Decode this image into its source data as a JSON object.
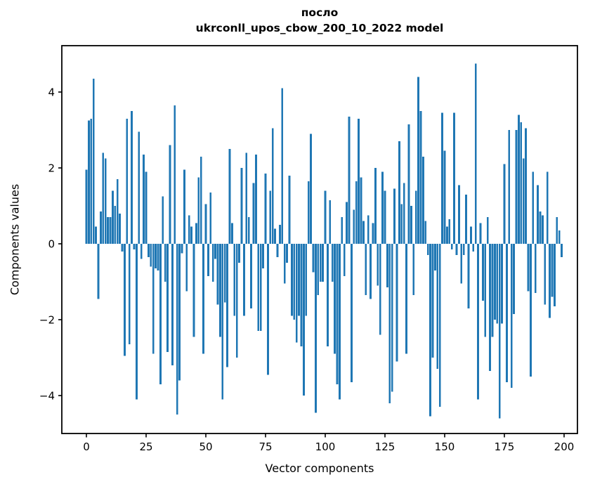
{
  "figure": {
    "title_line1": "посло",
    "title_line2": "ukrconll_upos_cbow_200_10_2022 model",
    "xlabel": "Vector components",
    "ylabel": "Components values",
    "bar_color": "#1f77b4",
    "axis_color": "#000000",
    "background_color": "#ffffff"
  },
  "chart_data": {
    "type": "bar",
    "title": "посло\nukrconll_upos_cbow_200_10_2022 model",
    "xlabel": "Vector components",
    "ylabel": "Components values",
    "legend": null,
    "grid": false,
    "x_ticks": [
      0,
      25,
      50,
      75,
      100,
      125,
      150,
      175,
      200
    ],
    "y_ticks": [
      -4,
      -2,
      0,
      2,
      4
    ],
    "xlim": [
      -10.3,
      205.6
    ],
    "ylim": [
      -5.07,
      5.22
    ],
    "bar_width_fraction": 0.8,
    "x_start_index": 0,
    "values": [
      1.95,
      3.25,
      3.3,
      4.35,
      0.45,
      -1.45,
      0.85,
      2.4,
      2.25,
      0.7,
      0.7,
      1.4,
      1.0,
      1.7,
      0.8,
      -0.2,
      -2.95,
      3.3,
      -2.65,
      3.5,
      -0.15,
      -4.1,
      2.95,
      -0.4,
      2.35,
      1.9,
      -0.35,
      -0.6,
      -2.9,
      -0.65,
      -0.7,
      -3.7,
      1.25,
      -1.0,
      -2.85,
      2.6,
      -3.2,
      3.65,
      -4.5,
      -3.6,
      -0.25,
      1.95,
      -1.25,
      0.75,
      0.45,
      -2.45,
      0.55,
      1.75,
      2.3,
      -2.9,
      1.05,
      -0.85,
      1.35,
      -1.0,
      -0.4,
      -1.6,
      -2.45,
      -4.1,
      -1.55,
      -3.25,
      2.5,
      0.55,
      -1.9,
      -3.0,
      -0.5,
      2.0,
      -1.9,
      2.4,
      0.7,
      -1.7,
      1.6,
      2.35,
      -2.3,
      -2.3,
      -0.65,
      1.85,
      -3.45,
      1.4,
      3.05,
      0.4,
      -0.35,
      0.5,
      4.1,
      -1.05,
      -0.5,
      1.8,
      -1.9,
      -2.0,
      -2.6,
      -1.9,
      -2.7,
      -4.0,
      -1.9,
      1.65,
      2.9,
      -0.75,
      -4.45,
      -1.35,
      -1.0,
      -1.0,
      1.4,
      -2.7,
      1.15,
      -1.0,
      -2.9,
      -3.7,
      -4.1,
      0.7,
      -0.85,
      1.1,
      3.35,
      -3.65,
      0.9,
      1.65,
      3.3,
      1.75,
      0.6,
      -1.35,
      0.75,
      -1.45,
      0.55,
      2.0,
      -1.1,
      -2.4,
      1.9,
      1.4,
      -1.15,
      -4.2,
      -3.9,
      1.45,
      -3.1,
      2.7,
      1.05,
      1.6,
      -2.9,
      3.15,
      1.0,
      -1.35,
      1.4,
      4.4,
      3.5,
      2.3,
      0.6,
      -0.3,
      -4.55,
      -3.0,
      -0.7,
      -3.3,
      -4.3,
      3.45,
      2.45,
      0.45,
      0.65,
      -0.15,
      3.45,
      -0.3,
      1.55,
      -1.05,
      -0.3,
      1.3,
      -1.7,
      0.45,
      -0.2,
      4.75,
      -4.1,
      0.55,
      -1.5,
      -2.45,
      0.7,
      -3.35,
      -2.45,
      -2.0,
      -2.1,
      -4.6,
      -2.1,
      2.1,
      -3.65,
      3.0,
      -3.8,
      -1.85,
      3.0,
      3.4,
      3.2,
      2.25,
      3.05,
      -1.25,
      -3.5,
      1.9,
      -1.3,
      1.55,
      0.85,
      0.75,
      -1.6,
      1.9,
      -1.95,
      -1.4,
      -1.65,
      0.7,
      0.35,
      -0.35
    ]
  }
}
